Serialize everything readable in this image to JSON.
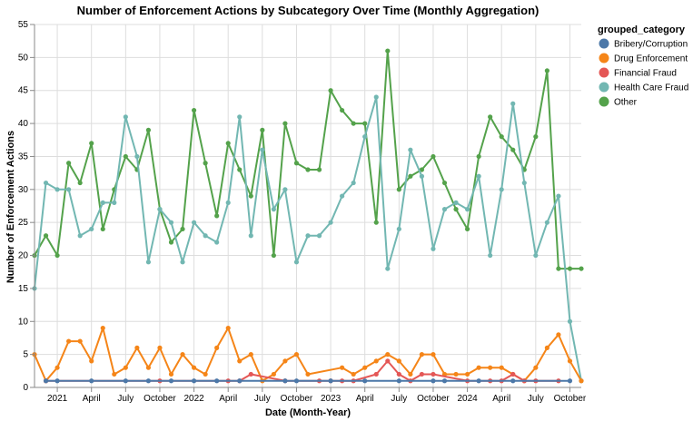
{
  "chart_data": {
    "type": "line",
    "title": "Number of Enforcement Actions by Subcategory Over Time (Monthly Aggregation)",
    "xlabel": "Date (Month-Year)",
    "ylabel": "Number of Enforcement Actions",
    "ylim": [
      0,
      55
    ],
    "yticks": [
      0,
      5,
      10,
      15,
      20,
      25,
      30,
      35,
      40,
      45,
      50,
      55
    ],
    "xlim": [
      "2020-11",
      "2024-11"
    ],
    "xticks": [
      {
        "date": "2021-01",
        "label": "2021"
      },
      {
        "date": "2021-04",
        "label": "April"
      },
      {
        "date": "2021-07",
        "label": "July"
      },
      {
        "date": "2021-10",
        "label": "October"
      },
      {
        "date": "2022-01",
        "label": "2022"
      },
      {
        "date": "2022-04",
        "label": "April"
      },
      {
        "date": "2022-07",
        "label": "July"
      },
      {
        "date": "2022-10",
        "label": "October"
      },
      {
        "date": "2023-01",
        "label": "2023"
      },
      {
        "date": "2023-04",
        "label": "April"
      },
      {
        "date": "2023-07",
        "label": "July"
      },
      {
        "date": "2023-10",
        "label": "October"
      },
      {
        "date": "2024-01",
        "label": "2024"
      },
      {
        "date": "2024-04",
        "label": "April"
      },
      {
        "date": "2024-07",
        "label": "July"
      },
      {
        "date": "2024-10",
        "label": "October"
      }
    ],
    "grid": true,
    "legend": {
      "title": "grouped_category",
      "position": "right"
    },
    "series": [
      {
        "name": "Bribery/Corruption",
        "color": "#4c78a8",
        "x": [
          "2020-12",
          "2021-01",
          "2021-04",
          "2021-07",
          "2021-09",
          "2021-11",
          "2022-01",
          "2022-03",
          "2022-05",
          "2022-09",
          "2022-10",
          "2023-01",
          "2023-04",
          "2023-07",
          "2023-10",
          "2023-11",
          "2024-02",
          "2024-05",
          "2024-10"
        ],
        "y": [
          1,
          1,
          1,
          1,
          1,
          1,
          1,
          1,
          1,
          1,
          1,
          1,
          1,
          1,
          1,
          1,
          1,
          1,
          1
        ]
      },
      {
        "name": "Drug Enforcement",
        "color": "#f58518",
        "x": [
          "2020-11",
          "2020-12",
          "2021-01",
          "2021-02",
          "2021-03",
          "2021-04",
          "2021-05",
          "2021-06",
          "2021-07",
          "2021-08",
          "2021-09",
          "2021-10",
          "2021-11",
          "2021-12",
          "2022-01",
          "2022-02",
          "2022-03",
          "2022-04",
          "2022-05",
          "2022-06",
          "2022-07",
          "2022-08",
          "2022-09",
          "2022-10",
          "2022-11",
          "2023-02",
          "2023-03",
          "2023-04",
          "2023-05",
          "2023-06",
          "2023-07",
          "2023-08",
          "2023-09",
          "2023-10",
          "2023-11",
          "2023-12",
          "2024-01",
          "2024-02",
          "2024-03",
          "2024-04",
          "2024-05",
          "2024-06",
          "2024-07",
          "2024-08",
          "2024-09",
          "2024-10",
          "2024-11"
        ],
        "y": [
          5,
          1,
          3,
          7,
          7,
          4,
          9,
          2,
          3,
          6,
          3,
          6,
          2,
          5,
          3,
          2,
          6,
          9,
          4,
          5,
          1,
          2,
          4,
          5,
          2,
          3,
          2,
          3,
          4,
          5,
          4,
          2,
          5,
          5,
          2,
          2,
          2,
          3,
          3,
          3,
          2,
          1,
          3,
          6,
          8,
          4,
          1
        ]
      },
      {
        "name": "Financial Fraud",
        "color": "#e45756",
        "x": [
          "2020-12",
          "2021-10",
          "2022-04",
          "2022-05",
          "2022-06",
          "2022-09",
          "2022-12",
          "2023-01",
          "2023-02",
          "2023-03",
          "2023-05",
          "2023-06",
          "2023-07",
          "2023-08",
          "2023-09",
          "2023-10",
          "2024-01",
          "2024-03",
          "2024-04",
          "2024-05",
          "2024-06",
          "2024-07",
          "2024-09"
        ],
        "y": [
          1,
          1,
          1,
          1,
          2,
          1,
          1,
          1,
          1,
          1,
          2,
          4,
          2,
          1,
          2,
          2,
          1,
          1,
          1,
          2,
          1,
          1,
          1
        ]
      },
      {
        "name": "Health Care Fraud",
        "color": "#72b7b2",
        "x": [
          "2020-11",
          "2020-12",
          "2021-01",
          "2021-02",
          "2021-03",
          "2021-04",
          "2021-05",
          "2021-06",
          "2021-07",
          "2021-08",
          "2021-09",
          "2021-10",
          "2021-11",
          "2021-12",
          "2022-01",
          "2022-02",
          "2022-03",
          "2022-04",
          "2022-05",
          "2022-06",
          "2022-07",
          "2022-08",
          "2022-09",
          "2022-10",
          "2022-11",
          "2022-12",
          "2023-01",
          "2023-02",
          "2023-03",
          "2023-04",
          "2023-05",
          "2023-06",
          "2023-07",
          "2023-08",
          "2023-09",
          "2023-10",
          "2023-11",
          "2023-12",
          "2024-01",
          "2024-02",
          "2024-03",
          "2024-04",
          "2024-05",
          "2024-06",
          "2024-07",
          "2024-08",
          "2024-09",
          "2024-10",
          "2024-11"
        ],
        "y": [
          15,
          31,
          30,
          30,
          23,
          24,
          28,
          28,
          41,
          35,
          19,
          27,
          25,
          19,
          25,
          23,
          22,
          28,
          41,
          23,
          36,
          27,
          30,
          19,
          23,
          23,
          25,
          29,
          31,
          38,
          44,
          18,
          24,
          36,
          32,
          21,
          27,
          28,
          27,
          32,
          20,
          30,
          43,
          31,
          20,
          25,
          29,
          10,
          1
        ]
      },
      {
        "name": "Other",
        "color": "#54a24b",
        "x": [
          "2020-11",
          "2020-12",
          "2021-01",
          "2021-02",
          "2021-03",
          "2021-04",
          "2021-05",
          "2021-06",
          "2021-07",
          "2021-08",
          "2021-09",
          "2021-10",
          "2021-11",
          "2021-12",
          "2022-01",
          "2022-02",
          "2022-03",
          "2022-04",
          "2022-05",
          "2022-06",
          "2022-07",
          "2022-08",
          "2022-09",
          "2022-10",
          "2022-11",
          "2022-12",
          "2023-01",
          "2023-02",
          "2023-03",
          "2023-04",
          "2023-05",
          "2023-06",
          "2023-07",
          "2023-08",
          "2023-09",
          "2023-10",
          "2023-11",
          "2023-12",
          "2024-01",
          "2024-02",
          "2024-03",
          "2024-04",
          "2024-05",
          "2024-06",
          "2024-07",
          "2024-08",
          "2024-09",
          "2024-10",
          "2024-11"
        ],
        "y": [
          20,
          23,
          20,
          34,
          31,
          37,
          24,
          30,
          35,
          33,
          39,
          27,
          22,
          24,
          42,
          34,
          26,
          37,
          33,
          29,
          39,
          20,
          40,
          34,
          33,
          33,
          45,
          42,
          40,
          40,
          25,
          51,
          30,
          32,
          33,
          35,
          31,
          27,
          24,
          35,
          41,
          38,
          36,
          33,
          38,
          48,
          18,
          18,
          18
        ]
      }
    ]
  }
}
